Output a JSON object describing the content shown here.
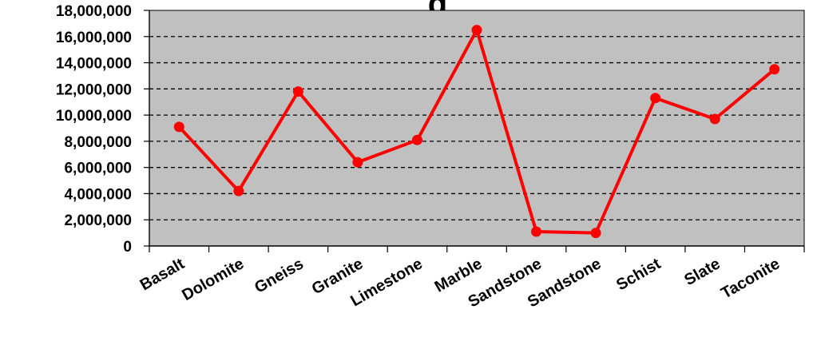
{
  "chart_data": {
    "type": "line",
    "title": "g",
    "categories": [
      "Basalt",
      "Dolomite",
      "Gneiss",
      "Granite",
      "Limestone",
      "Marble",
      "Sandstone",
      "Sandstone",
      "Schist",
      "Slate",
      "Taconite"
    ],
    "series": [
      {
        "values": [
          9100000,
          4200000,
          11800000,
          6400000,
          8100000,
          16500000,
          1100000,
          1000000,
          11300000,
          9700000,
          13500000
        ]
      }
    ],
    "y_ticks": [
      "0",
      "2,000,000",
      "4,000,000",
      "6,000,000",
      "8,000,000",
      "10,000,000",
      "12,000,000",
      "14,000,000",
      "16,000,000",
      "18,000,000"
    ],
    "ylim": [
      0,
      18000000
    ],
    "xlabel": "",
    "ylabel": "",
    "grid": true,
    "legend": "none",
    "colors": {
      "line": "#ff0000",
      "plot_background": "#c0c0c0",
      "gridline": "#000000",
      "axis": "#000000"
    }
  }
}
